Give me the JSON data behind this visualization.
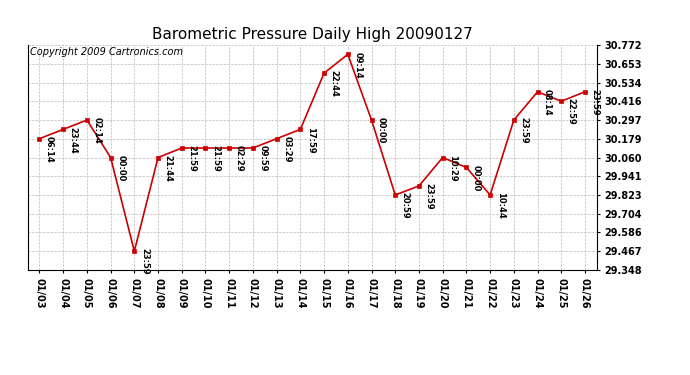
{
  "title": "Barometric Pressure Daily High 20090127",
  "copyright": "Copyright 2009 Cartronics.com",
  "x_labels": [
    "01/03",
    "01/04",
    "01/05",
    "01/06",
    "01/07",
    "01/08",
    "01/09",
    "01/10",
    "01/11",
    "01/12",
    "01/13",
    "01/14",
    "01/15",
    "01/16",
    "01/17",
    "01/18",
    "01/19",
    "01/20",
    "01/21",
    "01/22",
    "01/23",
    "01/24",
    "01/25",
    "01/26"
  ],
  "x_values": [
    0,
    1,
    2,
    3,
    4,
    5,
    6,
    7,
    8,
    9,
    10,
    11,
    12,
    13,
    14,
    15,
    16,
    17,
    18,
    19,
    20,
    21,
    22,
    23
  ],
  "y_values": [
    30.179,
    30.238,
    30.297,
    30.06,
    29.467,
    30.06,
    30.12,
    30.12,
    30.12,
    30.12,
    30.179,
    30.238,
    30.594,
    30.713,
    30.297,
    29.823,
    29.88,
    30.06,
    29.997,
    29.823,
    30.297,
    30.476,
    30.416,
    30.476
  ],
  "point_labels": [
    "06:14",
    "23:44",
    "02:14",
    "00:00",
    "23:59",
    "21:44",
    "21:59",
    "21:59",
    "02:29",
    "09:59",
    "03:29",
    "17:59",
    "22:44",
    "09:14",
    "00:00",
    "20:59",
    "23:59",
    "10:29",
    "00:00",
    "10:44",
    "23:59",
    "08:14",
    "22:59",
    "23:59"
  ],
  "y_ticks": [
    29.348,
    29.467,
    29.586,
    29.704,
    29.823,
    29.941,
    30.06,
    30.179,
    30.297,
    30.416,
    30.534,
    30.653,
    30.772
  ],
  "y_min": 29.348,
  "y_max": 30.772,
  "line_color": "#cc0000",
  "marker_color": "#cc0000",
  "bg_color": "#ffffff",
  "grid_color": "#bbbbbb",
  "title_fontsize": 11,
  "copyright_fontsize": 7,
  "tick_fontsize": 7
}
